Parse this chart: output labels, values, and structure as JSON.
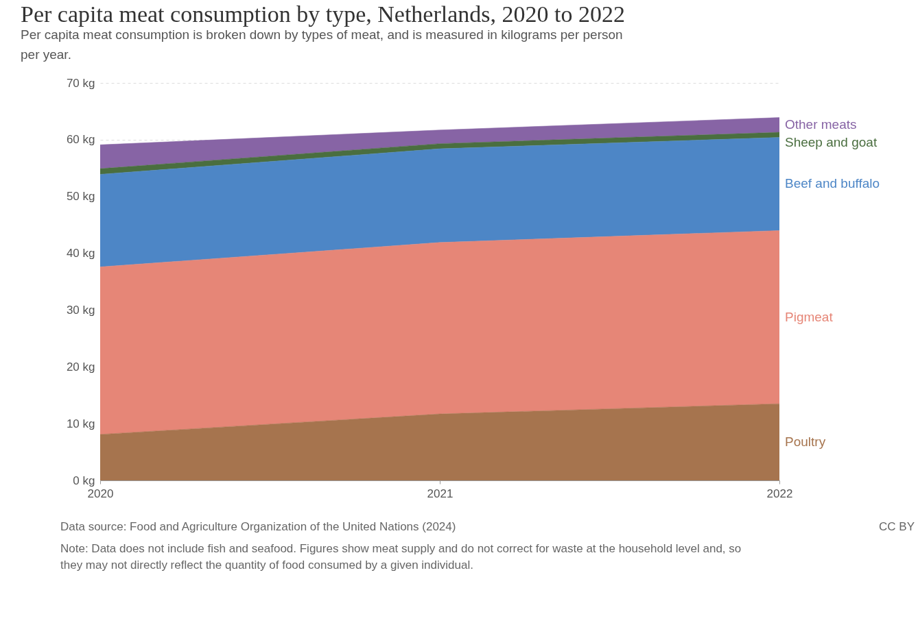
{
  "chart_data": {
    "type": "area",
    "stacked": true,
    "title": "Per capita meat consumption by type, Netherlands, 2020 to 2022",
    "subtitle": "Per capita meat consumption is broken down by types of meat, and is measured in kilograms per person per year.",
    "categories": [
      "2020",
      "2021",
      "2022"
    ],
    "ylim": [
      0,
      70
    ],
    "yticks": [
      {
        "value": 0,
        "label": "0 kg"
      },
      {
        "value": 10,
        "label": "10 kg"
      },
      {
        "value": 20,
        "label": "20 kg"
      },
      {
        "value": 30,
        "label": "30 kg"
      },
      {
        "value": 40,
        "label": "40 kg"
      },
      {
        "value": 50,
        "label": "50 kg"
      },
      {
        "value": 60,
        "label": "60 kg"
      },
      {
        "value": 70,
        "label": "70 kg"
      }
    ],
    "grid": "y",
    "series": [
      {
        "name": "Poultry",
        "color": "#a6744e",
        "values": [
          8.1,
          11.7,
          13.5
        ]
      },
      {
        "name": "Pigmeat",
        "color": "#e68677",
        "values": [
          29.5,
          30.2,
          30.5
        ]
      },
      {
        "name": "Beef and buffalo",
        "color": "#4d86c6",
        "values": [
          16.3,
          16.5,
          16.4
        ]
      },
      {
        "name": "Sheep and goat",
        "color": "#4a6e3f",
        "values": [
          1.0,
          0.9,
          0.9
        ]
      },
      {
        "name": "Other meats",
        "color": "#8764a5",
        "values": [
          4.2,
          2.4,
          2.6
        ]
      }
    ],
    "annotations": [
      "Data source: Food and Agriculture Organization of the United Nations (2024)",
      "CC BY",
      "Note: Data does not include fish and seafood. Figures show meat supply and do not correct for waste at the household level and, so they may not directly reflect the quantity of food consumed by a given individual."
    ]
  }
}
